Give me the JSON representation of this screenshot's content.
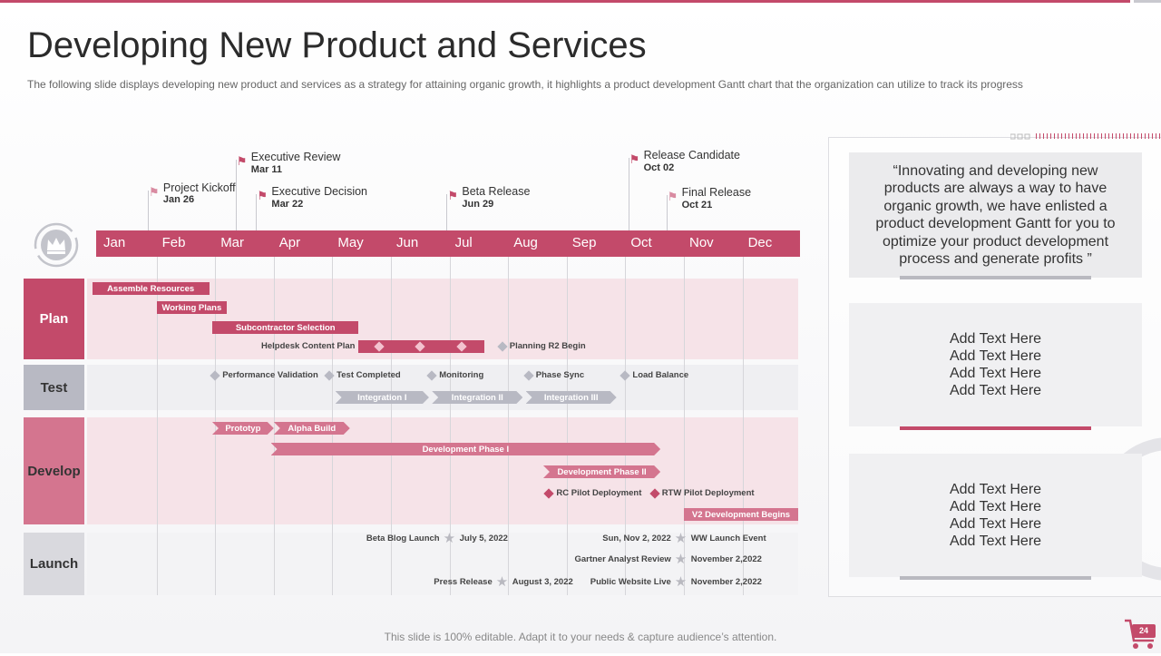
{
  "title": "Developing New Product and Services",
  "subtitle": "The following slide displays developing new product and services as  a strategy for attaining organic growth, it  highlights a product development Gantt chart that the organization can utilize to track its progress",
  "colors": {
    "accent": "#c34a6a",
    "pink_light": "#f6e3e8",
    "grey": "#b8b9c3",
    "grey_light": "#efeff2",
    "develop": "#d4758f"
  },
  "chart_data": {
    "type": "gantt",
    "title": "Developing New Product and Services",
    "months": [
      "Jan",
      "Feb",
      "Mar",
      "Apr",
      "May",
      "Jun",
      "Jul",
      "Aug",
      "Sep",
      "Oct",
      "Nov",
      "Dec"
    ],
    "milestones": [
      {
        "name": "Project Kickoff",
        "date": "Jan 26",
        "month_pos": 0.85
      },
      {
        "name": "Executive Review",
        "date": "Mar 11",
        "month_pos": 2.35
      },
      {
        "name": "Executive Decision",
        "date": "Mar 22",
        "month_pos": 2.7
      },
      {
        "name": "Beta Release",
        "date": "Jun 29",
        "month_pos": 5.95
      },
      {
        "name": "Release Candidate",
        "date": "Oct 02",
        "month_pos": 9.05
      },
      {
        "name": "Final Release",
        "date": "Oct 21",
        "month_pos": 9.7
      }
    ],
    "rows": [
      {
        "name": "Plan",
        "tasks": [
          {
            "label": "Assemble  Resources",
            "start": -0.1,
            "end": 1.9,
            "type": "bar"
          },
          {
            "label": "Working Plans",
            "start": 1.0,
            "end": 2.2,
            "type": "bar"
          },
          {
            "label": "Subcontractor Selection",
            "start": 1.95,
            "end": 4.45,
            "type": "bar"
          },
          {
            "label": "Helpdesk Content Plan",
            "start": 4.45,
            "end": 6.6,
            "type": "bar-diamonds",
            "diamonds": [
              4.8,
              5.5,
              6.2
            ]
          },
          {
            "label": "Planning R2 Begin",
            "start": 6.9,
            "type": "diamond"
          }
        ]
      },
      {
        "name": "Test",
        "tasks": [
          {
            "label": "Performance Validation",
            "start": 2.0,
            "type": "diamond"
          },
          {
            "label": "Test Completed",
            "start": 3.95,
            "type": "diamond"
          },
          {
            "label": "Monitoring",
            "start": 5.7,
            "type": "diamond"
          },
          {
            "label": "Phase Sync",
            "start": 7.35,
            "type": "diamond"
          },
          {
            "label": "Load Balance",
            "start": 9.0,
            "type": "diamond"
          },
          {
            "label": "Integration I",
            "start": 4.05,
            "end": 5.65,
            "type": "arrow"
          },
          {
            "label": "Integration II",
            "start": 5.7,
            "end": 7.25,
            "type": "arrow"
          },
          {
            "label": "Integration III",
            "start": 7.3,
            "end": 8.85,
            "type": "arrow"
          }
        ]
      },
      {
        "name": "Develop",
        "tasks": [
          {
            "label": "Prototyp",
            "start": 1.95,
            "end": 3.0,
            "type": "arrow"
          },
          {
            "label": "Alpha Build",
            "start": 3.0,
            "end": 4.3,
            "type": "arrow"
          },
          {
            "label": "Development Phase I",
            "start": 2.95,
            "end": 9.6,
            "type": "arrow"
          },
          {
            "label": "Development Phase II",
            "start": 7.6,
            "end": 9.6,
            "type": "arrow"
          },
          {
            "label": "RC Pilot Deployment",
            "start": 7.7,
            "type": "diamond"
          },
          {
            "label": "RTW Pilot Deployment",
            "start": 9.5,
            "type": "diamond"
          },
          {
            "label": "V2 Development Begins",
            "start": 10.0,
            "end": 11.95,
            "type": "bar"
          }
        ]
      },
      {
        "name": "Launch",
        "tasks": [
          {
            "label": "Beta Blog Launch",
            "date": "July 5, 2022",
            "start": 6.0,
            "type": "star"
          },
          {
            "label": "Press Release",
            "date": "August  3, 2022",
            "start": 6.9,
            "type": "star"
          },
          {
            "label": "Sun, Nov 2, 2022",
            "date": "WW Launch Event",
            "start": 9.95,
            "type": "star"
          },
          {
            "label": "Gartner Analyst  Review",
            "date": "November 2,2022",
            "start": 9.95,
            "type": "star"
          },
          {
            "label": "Public Website Live",
            "date": "November 2,2022",
            "start": 9.95,
            "type": "star"
          }
        ]
      }
    ]
  },
  "side": {
    "quote": "“Innovating  and developing new products are always a way to have organic growth, we have enlisted a product development Gantt for you to optimize your product development process and generate profits  ”",
    "box1": [
      "Add Text Here",
      "Add Text Here",
      "Add Text Here",
      "Add Text Here"
    ],
    "box2": [
      "Add Text Here",
      "Add Text Here",
      "Add Text Here",
      "Add Text Here"
    ]
  },
  "footer": "This slide is 100% editable. Adapt it to your needs & capture audience’s attention.",
  "page_number": "24",
  "icons": {
    "crown": "crown-icon",
    "cart": "cart-icon"
  }
}
